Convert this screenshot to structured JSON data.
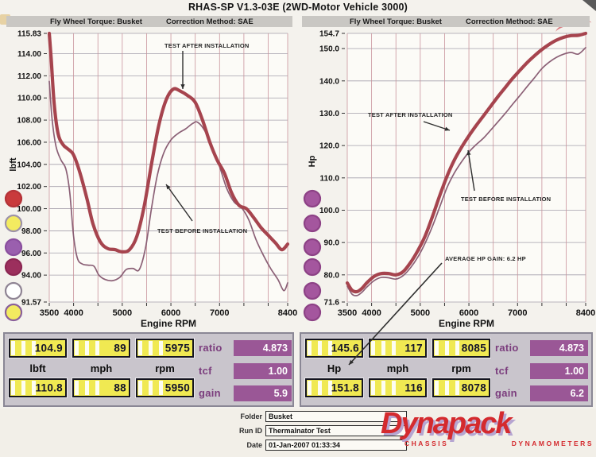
{
  "title": "RHAS-SP V1.3-03E (2WD-Motor Vehicle 3000)",
  "chart_data": [
    {
      "type": "line",
      "title": "Fly Wheel Torque: Busket",
      "correction": "Correction Method: SAE",
      "xlabel": "Engine RPM",
      "ylabel": "lbft",
      "xlim": [
        3500,
        8400
      ],
      "ylim": [
        91.57,
        115.83
      ],
      "x_ticks": [
        3500,
        4000,
        5000,
        6000,
        7000,
        8400
      ],
      "x_tick_labels": [
        "3500",
        "4000",
        "5000",
        "6000",
        "7000",
        "8400"
      ],
      "x_grid": [
        3500,
        4000,
        4500,
        5000,
        5500,
        6000,
        6500,
        7000,
        7500,
        8000,
        8400
      ],
      "y_ticks": [
        115.83,
        114,
        112,
        110,
        108,
        106,
        104,
        102,
        100,
        98,
        96,
        94,
        91.57
      ],
      "y_tick_labels": [
        "115.83",
        "114.00",
        "112.00",
        "110.00",
        "108.00",
        "106.00",
        "104.00",
        "102.00",
        "100.00",
        "98.00",
        "96.00",
        "94.00",
        "91.57"
      ],
      "grid": true,
      "annotations": [
        "TEST AFTER INSTALLATION",
        "TEST BEFORE INSTALLATION"
      ],
      "series": [
        {
          "name": "TEST AFTER INSTALLATION",
          "color": "#a6444e",
          "width": 4.2,
          "points": [
            [
              3500,
              115.83
            ],
            [
              3540,
              113.5
            ],
            [
              3600,
              109.5
            ],
            [
              3680,
              106.8
            ],
            [
              3780,
              105.8
            ],
            [
              3880,
              105.4
            ],
            [
              3980,
              105.0
            ],
            [
              4060,
              104.2
            ],
            [
              4160,
              102.8
            ],
            [
              4280,
              100.8
            ],
            [
              4400,
              98.6
            ],
            [
              4550,
              97.0
            ],
            [
              4700,
              96.4
            ],
            [
              4850,
              96.3
            ],
            [
              5000,
              96.1
            ],
            [
              5150,
              96.3
            ],
            [
              5300,
              97.5
            ],
            [
              5450,
              100.2
            ],
            [
              5600,
              104.0
            ],
            [
              5750,
              107.5
            ],
            [
              5900,
              109.8
            ],
            [
              6050,
              110.8
            ],
            [
              6200,
              110.6
            ],
            [
              6350,
              110.2
            ],
            [
              6500,
              109.6
            ],
            [
              6650,
              108.0
            ],
            [
              6800,
              106.0
            ],
            [
              6950,
              104.4
            ],
            [
              7100,
              103.2
            ],
            [
              7250,
              101.4
            ],
            [
              7400,
              100.3
            ],
            [
              7550,
              100.0
            ],
            [
              7700,
              99.2
            ],
            [
              7850,
              98.3
            ],
            [
              8000,
              97.6
            ],
            [
              8150,
              96.9
            ],
            [
              8280,
              96.3
            ],
            [
              8400,
              96.8
            ]
          ]
        },
        {
          "name": "TEST BEFORE INSTALLATION",
          "color": "#8b6076",
          "width": 1.7,
          "points": [
            [
              3500,
              111.5
            ],
            [
              3560,
              108.0
            ],
            [
              3640,
              105.6
            ],
            [
              3740,
              104.4
            ],
            [
              3840,
              103.6
            ],
            [
              3920,
              101.5
            ],
            [
              4000,
              97.5
            ],
            [
              4080,
              95.5
            ],
            [
              4180,
              95.0
            ],
            [
              4300,
              94.9
            ],
            [
              4420,
              94.8
            ],
            [
              4520,
              94.0
            ],
            [
              4650,
              93.6
            ],
            [
              4800,
              93.5
            ],
            [
              4950,
              93.8
            ],
            [
              5080,
              94.5
            ],
            [
              5220,
              94.6
            ],
            [
              5350,
              94.5
            ],
            [
              5480,
              96.5
            ],
            [
              5600,
              100.0
            ],
            [
              5720,
              103.0
            ],
            [
              5850,
              105.0
            ],
            [
              6000,
              106.2
            ],
            [
              6150,
              106.8
            ],
            [
              6300,
              107.2
            ],
            [
              6450,
              107.7
            ],
            [
              6550,
              107.8
            ],
            [
              6700,
              107.0
            ],
            [
              6850,
              105.4
            ],
            [
              7000,
              103.8
            ],
            [
              7150,
              101.8
            ],
            [
              7300,
              100.6
            ],
            [
              7450,
              100.1
            ],
            [
              7600,
              99.0
            ],
            [
              7750,
              97.2
            ],
            [
              7900,
              95.8
            ],
            [
              8050,
              94.6
            ],
            [
              8200,
              93.6
            ],
            [
              8320,
              92.6
            ],
            [
              8400,
              93.3
            ]
          ]
        }
      ],
      "legend_dots": [
        {
          "fill": "#c93a3c",
          "ring": "#b43338"
        },
        {
          "fill": "#f3eb60",
          "ring": "#9d92a8"
        },
        {
          "fill": "#9a5fae",
          "ring": "#8a4f9e"
        },
        {
          "fill": "#9c2f5d",
          "ring": "#8c2753"
        },
        {
          "fill": "#ffffff",
          "ring": "#8f8494"
        },
        {
          "fill": "#f3eb60",
          "ring": "#8a5f9a"
        }
      ]
    },
    {
      "type": "line",
      "title": "Fly Wheel Torque: Busket",
      "correction": "Correction Method: SAE",
      "xlabel": "Engine RPM",
      "ylabel": "Hp",
      "xlim": [
        3500,
        8400
      ],
      "ylim": [
        71.6,
        154.7
      ],
      "x_ticks": [
        3500,
        4000,
        5000,
        6000,
        7000,
        8400
      ],
      "x_tick_labels": [
        "3500",
        "4000",
        "5000",
        "6000",
        "7000",
        "8400"
      ],
      "x_grid": [
        3500,
        4000,
        4500,
        5000,
        5500,
        6000,
        6500,
        7000,
        7500,
        8000,
        8400
      ],
      "y_ticks": [
        154.7,
        150,
        140,
        130,
        120,
        110,
        100,
        90,
        80,
        71.6
      ],
      "y_tick_labels": [
        "154.7",
        "150.0",
        "140.0",
        "130.0",
        "120.0",
        "110.0",
        "100.0",
        "90.0",
        "80.0",
        "71.6"
      ],
      "grid": true,
      "annotations": [
        "TEST AFTER INSTALLATION",
        "TEST BEFORE INSTALLATION",
        "AVERAGE HP GAIN: 6.2 HP"
      ],
      "series": [
        {
          "name": "TEST AFTER INSTALLATION",
          "color": "#a6444e",
          "width": 4.2,
          "points": [
            [
              3500,
              77.5
            ],
            [
              3600,
              75.2
            ],
            [
              3700,
              74.8
            ],
            [
              3800,
              75.8
            ],
            [
              3900,
              77.5
            ],
            [
              4050,
              79.5
            ],
            [
              4200,
              80.4
            ],
            [
              4350,
              80.4
            ],
            [
              4500,
              80.0
            ],
            [
              4650,
              81.0
            ],
            [
              4800,
              83.8
            ],
            [
              4950,
              87.5
            ],
            [
              5100,
              92.0
            ],
            [
              5250,
              98.0
            ],
            [
              5400,
              104.5
            ],
            [
              5550,
              110.5
            ],
            [
              5700,
              115.5
            ],
            [
              5850,
              119.5
            ],
            [
              6000,
              123.0
            ],
            [
              6150,
              126.2
            ],
            [
              6300,
              129.2
            ],
            [
              6450,
              132.2
            ],
            [
              6600,
              135.2
            ],
            [
              6750,
              138.0
            ],
            [
              6900,
              140.8
            ],
            [
              7050,
              143.3
            ],
            [
              7200,
              145.7
            ],
            [
              7350,
              147.8
            ],
            [
              7500,
              149.7
            ],
            [
              7650,
              151.3
            ],
            [
              7800,
              152.6
            ],
            [
              7950,
              153.5
            ],
            [
              8100,
              154.0
            ],
            [
              8250,
              154.1
            ],
            [
              8400,
              154.7
            ]
          ]
        },
        {
          "name": "TEST BEFORE INSTALLATION",
          "color": "#8b6076",
          "width": 1.7,
          "points": [
            [
              3500,
              76.5
            ],
            [
              3600,
              74.0
            ],
            [
              3700,
              73.6
            ],
            [
              3800,
              74.6
            ],
            [
              3900,
              76.2
            ],
            [
              4050,
              78.2
            ],
            [
              4200,
              79.2
            ],
            [
              4350,
              79.1
            ],
            [
              4500,
              78.7
            ],
            [
              4650,
              79.8
            ],
            [
              4800,
              82.2
            ],
            [
              4950,
              85.5
            ],
            [
              5100,
              89.8
            ],
            [
              5250,
              95.0
            ],
            [
              5400,
              101.0
            ],
            [
              5550,
              107.0
            ],
            [
              5700,
              111.5
            ],
            [
              5850,
              115.0
            ],
            [
              6000,
              118.0
            ],
            [
              6150,
              120.3
            ],
            [
              6300,
              122.3
            ],
            [
              6450,
              124.8
            ],
            [
              6600,
              127.4
            ],
            [
              6750,
              130.0
            ],
            [
              6900,
              132.8
            ],
            [
              7050,
              135.5
            ],
            [
              7200,
              138.3
            ],
            [
              7350,
              141.0
            ],
            [
              7500,
              143.8
            ],
            [
              7650,
              145.8
            ],
            [
              7800,
              147.3
            ],
            [
              7950,
              148.3
            ],
            [
              8100,
              148.8
            ],
            [
              8250,
              148.3
            ],
            [
              8400,
              150.3
            ]
          ]
        }
      ],
      "legend_dots": [
        {
          "fill": "#a4569e",
          "ring": "#8d4286"
        },
        {
          "fill": "#a4569e",
          "ring": "#8d4286"
        },
        {
          "fill": "#a4569e",
          "ring": "#8d4286"
        },
        {
          "fill": "#a4569e",
          "ring": "#8d4286"
        },
        {
          "fill": "#a4569e",
          "ring": "#8d4286"
        },
        {
          "fill": "#a4569e",
          "ring": "#8d4286"
        }
      ]
    }
  ],
  "panels": [
    {
      "row1": [
        "104.9",
        "89",
        "5975"
      ],
      "units": [
        "lbft",
        "mph",
        "rpm"
      ],
      "row2": [
        "110.8",
        "88",
        "5950"
      ],
      "side": [
        {
          "label": "ratio",
          "value": "4.873"
        },
        {
          "label": "tcf",
          "value": "1.00"
        },
        {
          "label": "gain",
          "value": "5.9"
        }
      ]
    },
    {
      "row1": [
        "145.6",
        "117",
        "8085"
      ],
      "units": [
        "Hp",
        "mph",
        "rpm"
      ],
      "row2": [
        "151.8",
        "116",
        "8078"
      ],
      "side": [
        {
          "label": "ratio",
          "value": "4.873"
        },
        {
          "label": "tcf",
          "value": "1.00"
        },
        {
          "label": "gain",
          "value": "6.2"
        }
      ]
    }
  ],
  "footer": {
    "fields": [
      {
        "label": "Folder",
        "value": "Busket"
      },
      {
        "label": "Run ID",
        "value": "Thermalnator Test"
      },
      {
        "label": "Date",
        "value": "01-Jan-2007 01:33:34"
      }
    ],
    "logo": {
      "name": "Dynapack",
      "tagline_left": "CHASSIS",
      "tagline_right": "DYNAMOMETERS",
      "color": "#d42a2e",
      "shadow": "#b6a5d1"
    }
  }
}
